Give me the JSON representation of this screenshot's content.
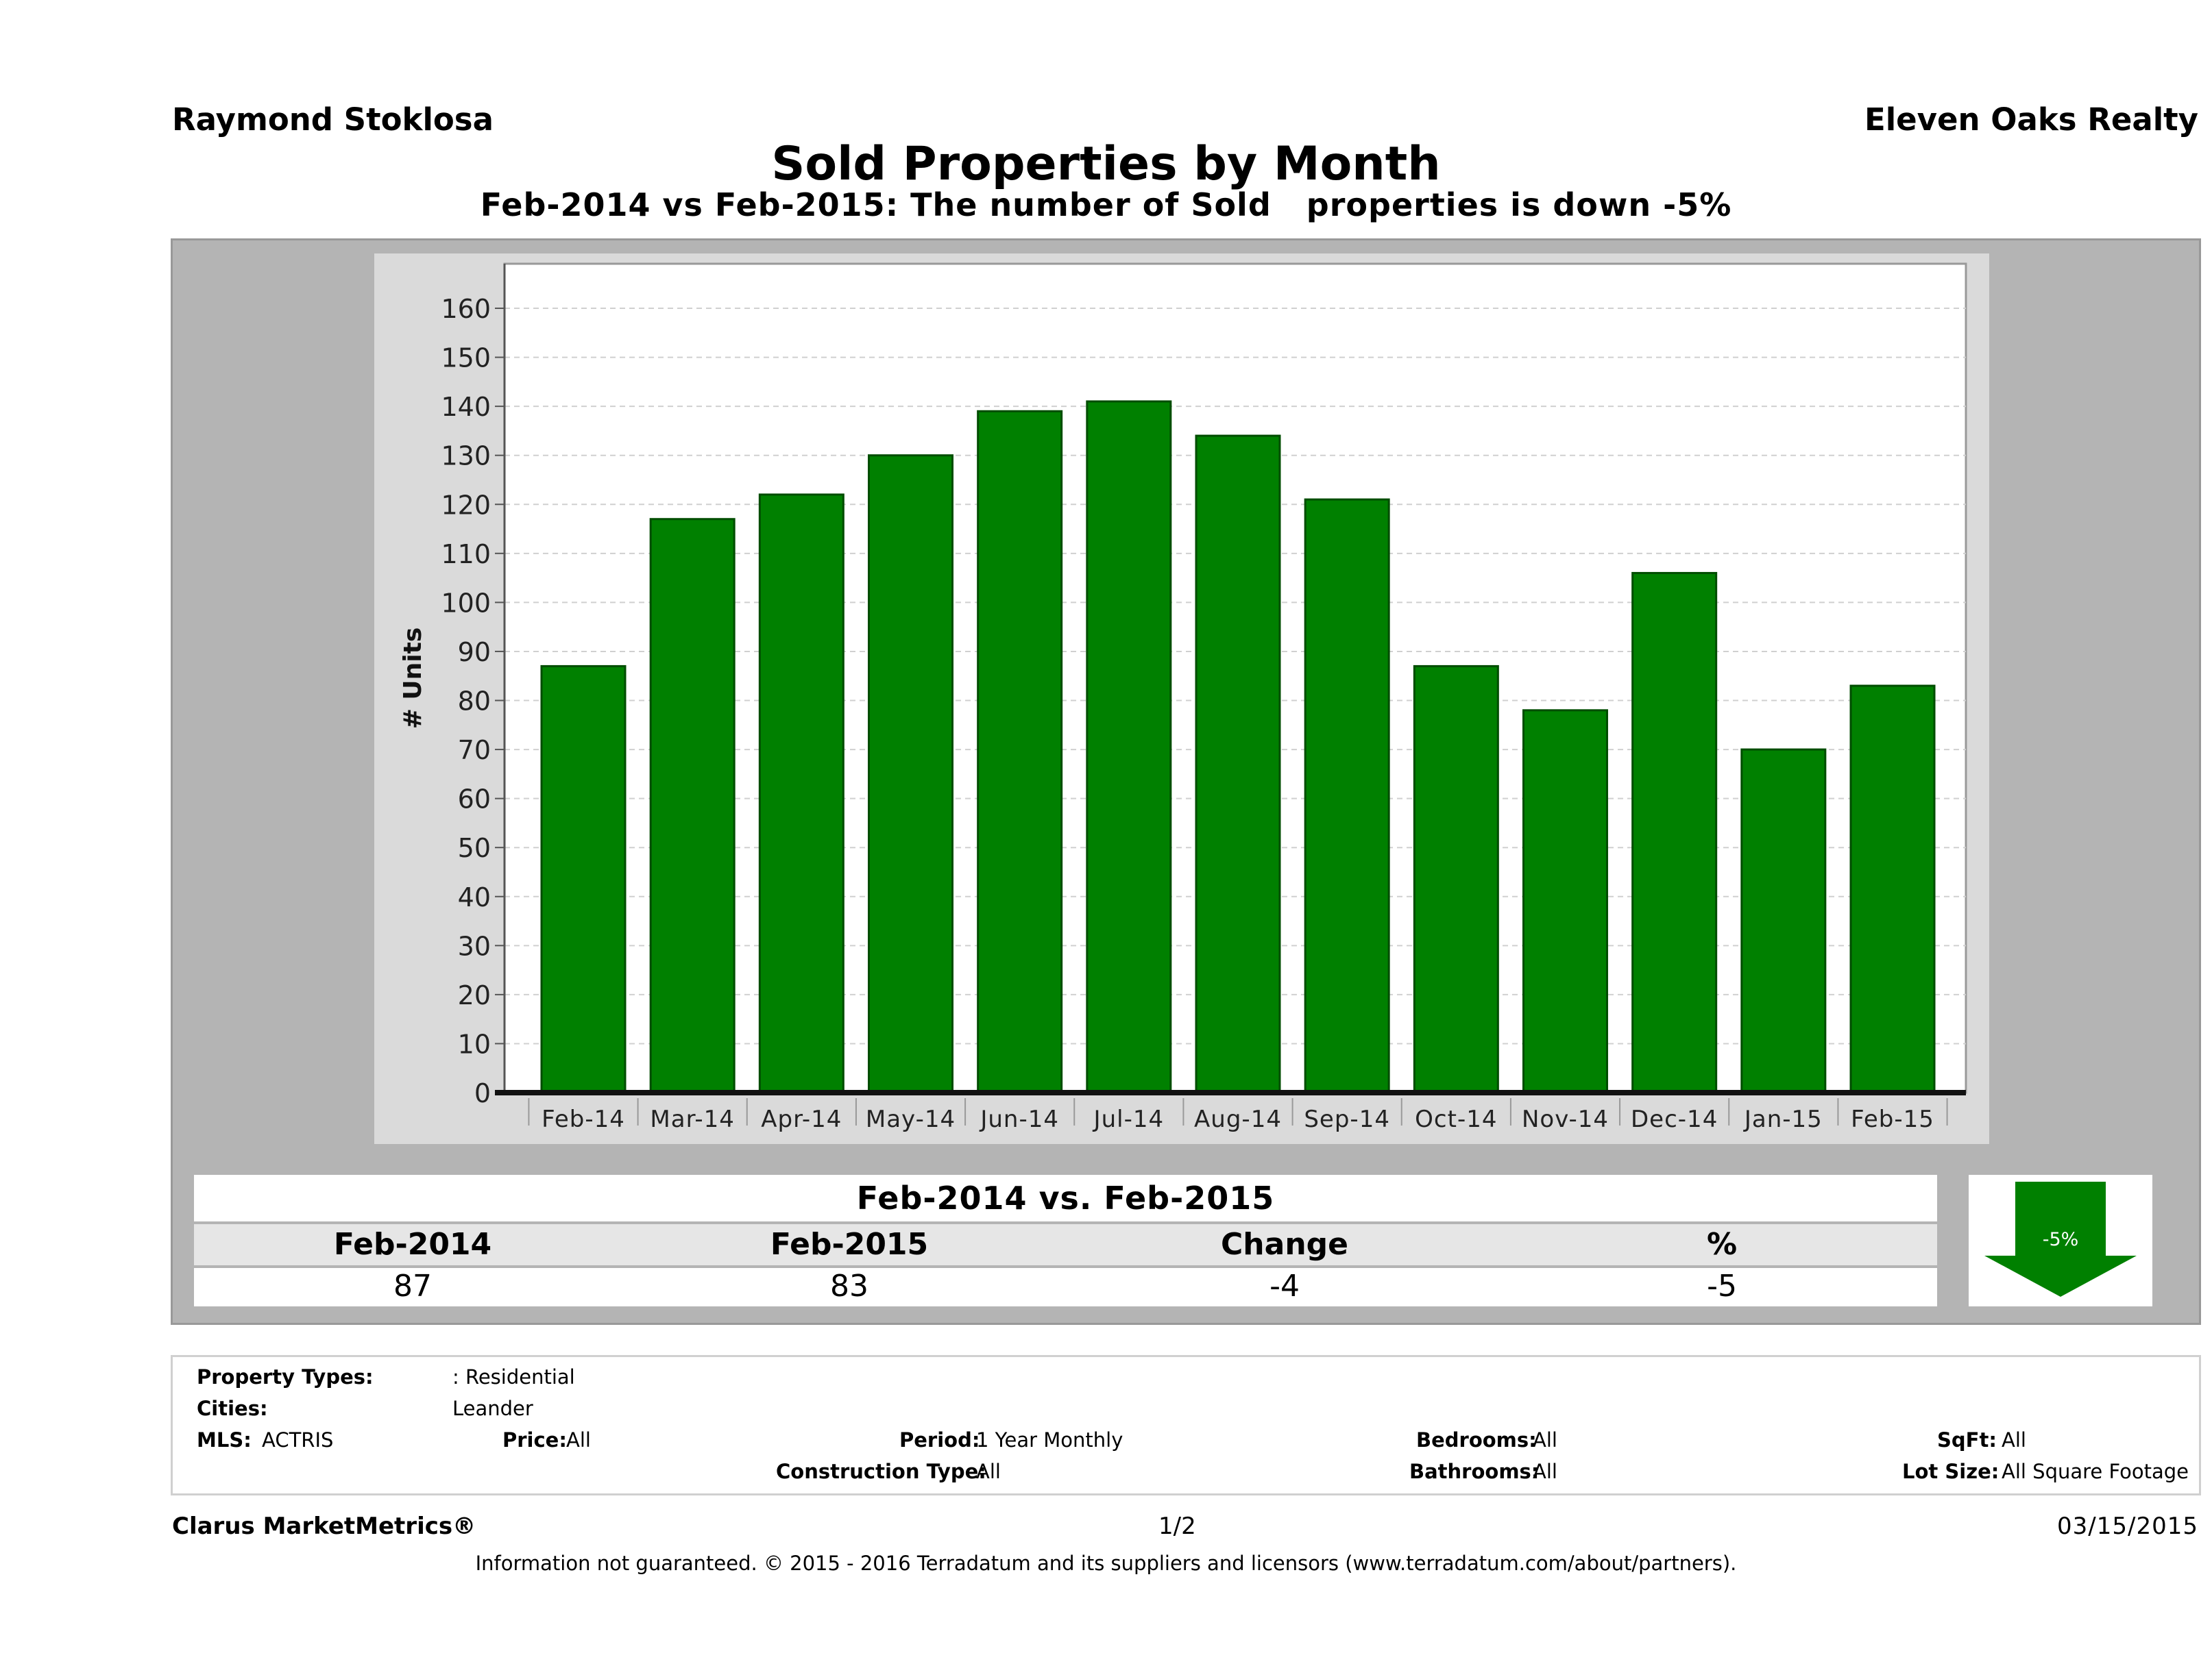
{
  "header": {
    "agent": "Raymond Stoklosa",
    "company": "Eleven Oaks Realty",
    "title": "Sold Properties by Month",
    "subtitle": "Feb-2014 vs Feb-2015: The number of Sold   properties is down -5%"
  },
  "chart_data": {
    "type": "bar",
    "categories": [
      "Feb-14",
      "Mar-14",
      "Apr-14",
      "May-14",
      "Jun-14",
      "Jul-14",
      "Aug-14",
      "Sep-14",
      "Oct-14",
      "Nov-14",
      "Dec-14",
      "Jan-15",
      "Feb-15"
    ],
    "values": [
      87,
      117,
      122,
      130,
      139,
      141,
      134,
      121,
      87,
      78,
      106,
      70,
      83
    ],
    "ylabel": "# Units",
    "ylim": [
      0,
      160
    ],
    "yticks": [
      0,
      10,
      20,
      30,
      40,
      50,
      60,
      70,
      80,
      90,
      100,
      110,
      120,
      130,
      140,
      150,
      160
    ],
    "grid": true,
    "bar_color": "#008000"
  },
  "comparison": {
    "title": "Feb-2014 vs. Feb-2015",
    "headers": [
      "Feb-2014",
      "Feb-2015",
      "Change",
      "%"
    ],
    "values": [
      "87",
      "83",
      "-4",
      "-5"
    ],
    "arrow_label": "-5%",
    "arrow_direction": "down",
    "arrow_color": "#008000"
  },
  "filters": {
    "property_types_label": "Property Types:",
    "property_types_value": ": Residential",
    "cities_label": "Cities:",
    "cities_value": "Leander",
    "mls_label": "MLS:",
    "mls_value": "ACTRIS",
    "price_label": "Price:",
    "price_value": "All",
    "period_label": "Period:",
    "period_value": "1 Year Monthly",
    "construction_label": "Construction Type:",
    "construction_value": "All",
    "bedrooms_label": "Bedrooms:",
    "bedrooms_value": "All",
    "bathrooms_label": "Bathrooms:",
    "bathrooms_value": "All",
    "sqft_label": "SqFt:",
    "sqft_value": "All",
    "lot_label": "Lot Size:",
    "lot_value": "All Square Footage"
  },
  "footer": {
    "brand": "Clarus MarketMetrics®",
    "page": "1/2",
    "date": "03/15/2015",
    "disclaimer": "Information not guaranteed. © 2015 - 2016 Terradatum and its suppliers and licensors (www.terradatum.com/about/partners)."
  }
}
